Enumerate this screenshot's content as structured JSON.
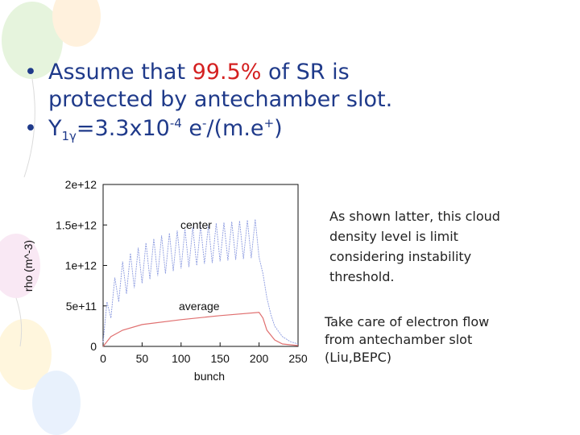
{
  "slide": {
    "bullet1": {
      "line1": [
        "Assume that ",
        "99.5%",
        " of SR is"
      ],
      "line2": "protected by antechamber slot."
    },
    "bullet2": [
      "Y",
      "1γ",
      "=3.3x10",
      "-4",
      " e",
      "-",
      "/(m.e",
      "+",
      ")"
    ],
    "note1": [
      "As shown latter, this cloud",
      "density level is limit",
      "considering instability",
      "threshold."
    ],
    "note2": [
      "Take care of electron flow",
      "from antechamber  slot",
      "(Liu,BEPC)"
    ]
  },
  "chart_data": {
    "type": "line",
    "x_label": "bunch",
    "y_label": "rho (m^-3)",
    "xlim": [
      0,
      250
    ],
    "xticks": [
      0,
      50,
      100,
      150,
      200,
      250
    ],
    "ylim": [
      0,
      2000000000000
    ],
    "yticks": [
      {
        "value": 0,
        "label": "0"
      },
      {
        "value": 500000000000,
        "label": "5e+11"
      },
      {
        "value": 1000000000000,
        "label": "1e+12"
      },
      {
        "value": 1500000000000,
        "label": "1.5e+12"
      },
      {
        "value": 2000000000000,
        "label": "2e+12"
      }
    ],
    "series": [
      {
        "name": "center",
        "color": "#8c9be0",
        "x": [
          0,
          5,
          10,
          15,
          20,
          25,
          30,
          35,
          40,
          45,
          50,
          55,
          60,
          65,
          70,
          75,
          80,
          85,
          90,
          95,
          100,
          105,
          110,
          115,
          120,
          125,
          130,
          135,
          140,
          145,
          150,
          155,
          160,
          165,
          170,
          175,
          180,
          185,
          190,
          195,
          200,
          205,
          210,
          215,
          220,
          230,
          240,
          250
        ],
        "values": [
          50000000000.0,
          550000000000.0,
          350000000000.0,
          850000000000.0,
          550000000000.0,
          1050000000000.0,
          650000000000.0,
          1150000000000.0,
          720000000000.0,
          1220000000000.0,
          780000000000.0,
          1280000000000.0,
          830000000000.0,
          1330000000000.0,
          870000000000.0,
          1370000000000.0,
          900000000000.0,
          1400000000000.0,
          930000000000.0,
          1430000000000.0,
          960000000000.0,
          1450000000000.0,
          980000000000.0,
          1470000000000.0,
          1000000000000.0,
          1490000000000.0,
          1020000000000.0,
          1500000000000.0,
          1030000000000.0,
          1520000000000.0,
          1050000000000.0,
          1530000000000.0,
          1060000000000.0,
          1540000000000.0,
          1070000000000.0,
          1550000000000.0,
          1080000000000.0,
          1560000000000.0,
          1090000000000.0,
          1570000000000.0,
          1100000000000.0,
          900000000000.0,
          600000000000.0,
          400000000000.0,
          250000000000.0,
          120000000000.0,
          60000000000.0,
          30000000000.0
        ]
      },
      {
        "name": "average",
        "color": "#e07070",
        "x": [
          0,
          10,
          25,
          50,
          100,
          150,
          200,
          205,
          210,
          220,
          230,
          250
        ],
        "values": [
          0,
          120000000000.0,
          200000000000.0,
          270000000000.0,
          330000000000.0,
          380000000000.0,
          420000000000.0,
          350000000000.0,
          200000000000.0,
          80000000000.0,
          30000000000.0,
          10000000000.0
        ]
      }
    ]
  }
}
